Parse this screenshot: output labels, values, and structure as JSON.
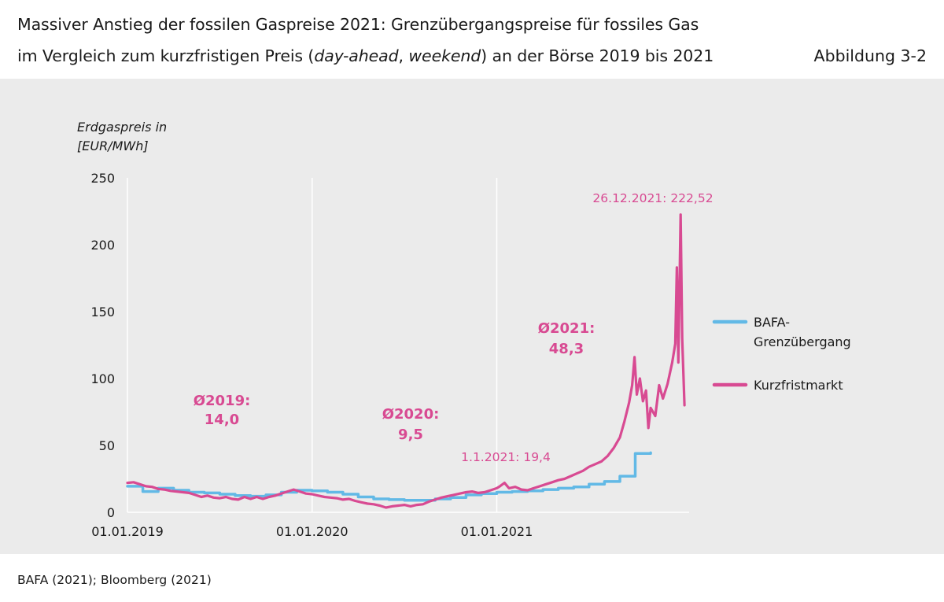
{
  "header": {
    "title_line1": "Massiver Anstieg der fossilen Gaspreise 2021: Grenzübergangspreise für fossiles Gas",
    "title_line2_a": "im Vergleich zum kurzfristigen Preis (",
    "title_line2_italic1": "day-ahead",
    "title_line2_sep": ", ",
    "title_line2_italic2": "weekend",
    "title_line2_b": ") an der Börse 2019 bis 2021",
    "figure_label": "Abbildung 3-2"
  },
  "footer": {
    "source": "BAFA (2021); Bloomberg (2021)"
  },
  "colors": {
    "bafa": "#62b9e6",
    "kurzfrist": "#d84a92",
    "panel": "#ebebeb",
    "grid": "#ffffff"
  },
  "chart_data": {
    "type": "line",
    "title": "Massiver Anstieg der fossilen Gaspreise 2021",
    "ylabel_line1": "Erdgaspreis in",
    "ylabel_line2": "[EUR/MWh]",
    "xlabel": "",
    "x_unit": "months since 01.01.2019",
    "xlim": [
      0,
      36.5
    ],
    "ylim": [
      0,
      250
    ],
    "yticks": [
      {
        "value": 0,
        "label": "0"
      },
      {
        "value": 50,
        "label": "50"
      },
      {
        "value": 100,
        "label": "100"
      },
      {
        "value": 150,
        "label": "150"
      },
      {
        "value": 200,
        "label": "200"
      },
      {
        "value": 250,
        "label": "250"
      }
    ],
    "xticks": [
      {
        "value": 0,
        "label": "01.01.2019"
      },
      {
        "value": 12,
        "label": "01.01.2020"
      },
      {
        "value": 24,
        "label": "01.01.2021"
      }
    ],
    "grid": true,
    "legend_position": "right",
    "series": [
      {
        "name": "BAFA-Grenzübergang",
        "legend_line1": "BAFA-",
        "legend_line2": "Grenzübergang",
        "color": "#62b9e6",
        "step": true,
        "points": [
          [
            0,
            19.5
          ],
          [
            1,
            15.5
          ],
          [
            2,
            18
          ],
          [
            3,
            16.5
          ],
          [
            4,
            15
          ],
          [
            5,
            14.5
          ],
          [
            6,
            13.5
          ],
          [
            7,
            12.5
          ],
          [
            8,
            12
          ],
          [
            9,
            13
          ],
          [
            10,
            15
          ],
          [
            11,
            16.5
          ],
          [
            12,
            16
          ],
          [
            13,
            15
          ],
          [
            14,
            13.5
          ],
          [
            15,
            11.5
          ],
          [
            16,
            10
          ],
          [
            17,
            9.5
          ],
          [
            18,
            9
          ],
          [
            19,
            9
          ],
          [
            20,
            10
          ],
          [
            21,
            11
          ],
          [
            22,
            13
          ],
          [
            23,
            14
          ],
          [
            24,
            15
          ],
          [
            25,
            15.5
          ],
          [
            26,
            16
          ],
          [
            27,
            17
          ],
          [
            28,
            18
          ],
          [
            29,
            19
          ],
          [
            30,
            21
          ],
          [
            31,
            23
          ],
          [
            32,
            27
          ],
          [
            33,
            44
          ],
          [
            34,
            44.5
          ]
        ]
      },
      {
        "name": "Kurzfristmarkt",
        "color": "#d84a92",
        "step": false,
        "points": [
          [
            0,
            22
          ],
          [
            0.4,
            22.5
          ],
          [
            0.8,
            21
          ],
          [
            1.2,
            19.5
          ],
          [
            1.6,
            19
          ],
          [
            2,
            17.5
          ],
          [
            2.4,
            17
          ],
          [
            2.8,
            16
          ],
          [
            3.2,
            15.5
          ],
          [
            3.6,
            15
          ],
          [
            4,
            14.5
          ],
          [
            4.4,
            13
          ],
          [
            4.8,
            11.5
          ],
          [
            5.2,
            12.5
          ],
          [
            5.6,
            11
          ],
          [
            6,
            10.5
          ],
          [
            6.4,
            11.5
          ],
          [
            6.8,
            10
          ],
          [
            7.2,
            9.5
          ],
          [
            7.6,
            11.5
          ],
          [
            8,
            10
          ],
          [
            8.4,
            11.5
          ],
          [
            8.8,
            10
          ],
          [
            9.2,
            11.5
          ],
          [
            9.6,
            12.5
          ],
          [
            10,
            14
          ],
          [
            10.4,
            15.5
          ],
          [
            10.8,
            17
          ],
          [
            11.2,
            15.5
          ],
          [
            11.6,
            14
          ],
          [
            12,
            13.5
          ],
          [
            12.4,
            12.5
          ],
          [
            12.8,
            11.5
          ],
          [
            13.2,
            11
          ],
          [
            13.6,
            10.5
          ],
          [
            14,
            9.5
          ],
          [
            14.4,
            10
          ],
          [
            14.8,
            8.5
          ],
          [
            15.2,
            7.5
          ],
          [
            15.6,
            6.5
          ],
          [
            16,
            6
          ],
          [
            16.4,
            5
          ],
          [
            16.8,
            3.5
          ],
          [
            17.2,
            4.5
          ],
          [
            17.6,
            5
          ],
          [
            18,
            5.5
          ],
          [
            18.4,
            4.5
          ],
          [
            18.8,
            5.5
          ],
          [
            19.2,
            6
          ],
          [
            19.6,
            8
          ],
          [
            20,
            9.5
          ],
          [
            20.4,
            11
          ],
          [
            20.8,
            12
          ],
          [
            21.2,
            13
          ],
          [
            21.6,
            14
          ],
          [
            22,
            15
          ],
          [
            22.4,
            15.5
          ],
          [
            22.8,
            14.5
          ],
          [
            23.2,
            15
          ],
          [
            23.6,
            16.5
          ],
          [
            24,
            18
          ],
          [
            24.2,
            19.4
          ],
          [
            24.5,
            22
          ],
          [
            24.8,
            18
          ],
          [
            25.2,
            19
          ],
          [
            25.6,
            17
          ],
          [
            26,
            16.5
          ],
          [
            26.4,
            18
          ],
          [
            26.8,
            19.5
          ],
          [
            27.2,
            21
          ],
          [
            27.6,
            22.5
          ],
          [
            28,
            24
          ],
          [
            28.4,
            25
          ],
          [
            28.8,
            27
          ],
          [
            29.2,
            29
          ],
          [
            29.6,
            31
          ],
          [
            30,
            34
          ],
          [
            30.4,
            36
          ],
          [
            30.8,
            38
          ],
          [
            31.2,
            42
          ],
          [
            31.6,
            48
          ],
          [
            32,
            56
          ],
          [
            32.3,
            68
          ],
          [
            32.6,
            82
          ],
          [
            32.8,
            95
          ],
          [
            32.95,
            116
          ],
          [
            33.1,
            88
          ],
          [
            33.3,
            100
          ],
          [
            33.5,
            83
          ],
          [
            33.7,
            91
          ],
          [
            33.85,
            63
          ],
          [
            34,
            78
          ],
          [
            34.3,
            72
          ],
          [
            34.55,
            95
          ],
          [
            34.8,
            85
          ],
          [
            35.1,
            96
          ],
          [
            35.4,
            112
          ],
          [
            35.6,
            126
          ],
          [
            35.7,
            183
          ],
          [
            35.8,
            112
          ],
          [
            35.9,
            188
          ],
          [
            35.95,
            222.52
          ],
          [
            36.05,
            130
          ],
          [
            36.2,
            80
          ]
        ]
      }
    ],
    "annotations": [
      {
        "id": "avg2019",
        "line1": "Ø2019:",
        "line2": "14,0"
      },
      {
        "id": "avg2020",
        "line1": "Ø2020:",
        "line2": "9,5"
      },
      {
        "id": "avg2021",
        "line1": "Ø2021:",
        "line2": "48,3"
      },
      {
        "id": "val2021start",
        "text": "1.1.2021: 19,4"
      },
      {
        "id": "valpeak",
        "text": "26.12.2021: 222,52"
      }
    ]
  }
}
